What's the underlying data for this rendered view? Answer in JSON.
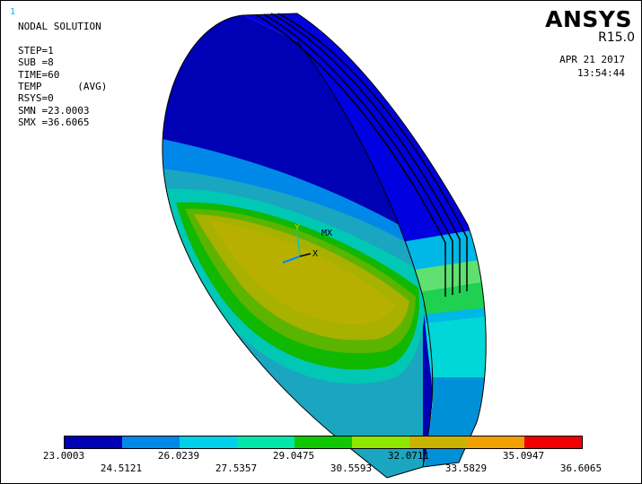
{
  "window_number": "1",
  "info": {
    "lines": [
      "NODAL SOLUTION",
      "",
      "STEP=1",
      "SUB =8",
      "TIME=60",
      "TEMP      (AVG)",
      "RSYS=0",
      "SMN =23.0003",
      "SMX =36.6065"
    ]
  },
  "logo": {
    "name": "ANSYS",
    "release": "R15.0"
  },
  "date": "APR 21 2017",
  "time": "13:54:44",
  "triad": {
    "y_label": "Y",
    "x_label": "X",
    "mx_label": "MX"
  },
  "colors": {
    "contour": [
      "#0000b4",
      "#0088e8",
      "#00d0e8",
      "#00e8a8",
      "#10c800",
      "#90e800",
      "#c8b400",
      "#f0a000",
      "#f00000"
    ],
    "triad_y": "#00c8c8",
    "triad_z": "#0088ff"
  },
  "legend": {
    "top_labels": [
      "23.0003",
      "26.0239",
      "29.0475",
      "32.0711",
      "35.0947"
    ],
    "bottom_labels": [
      "24.5121",
      "27.5357",
      "30.5593",
      "33.5829",
      "36.6065"
    ]
  }
}
